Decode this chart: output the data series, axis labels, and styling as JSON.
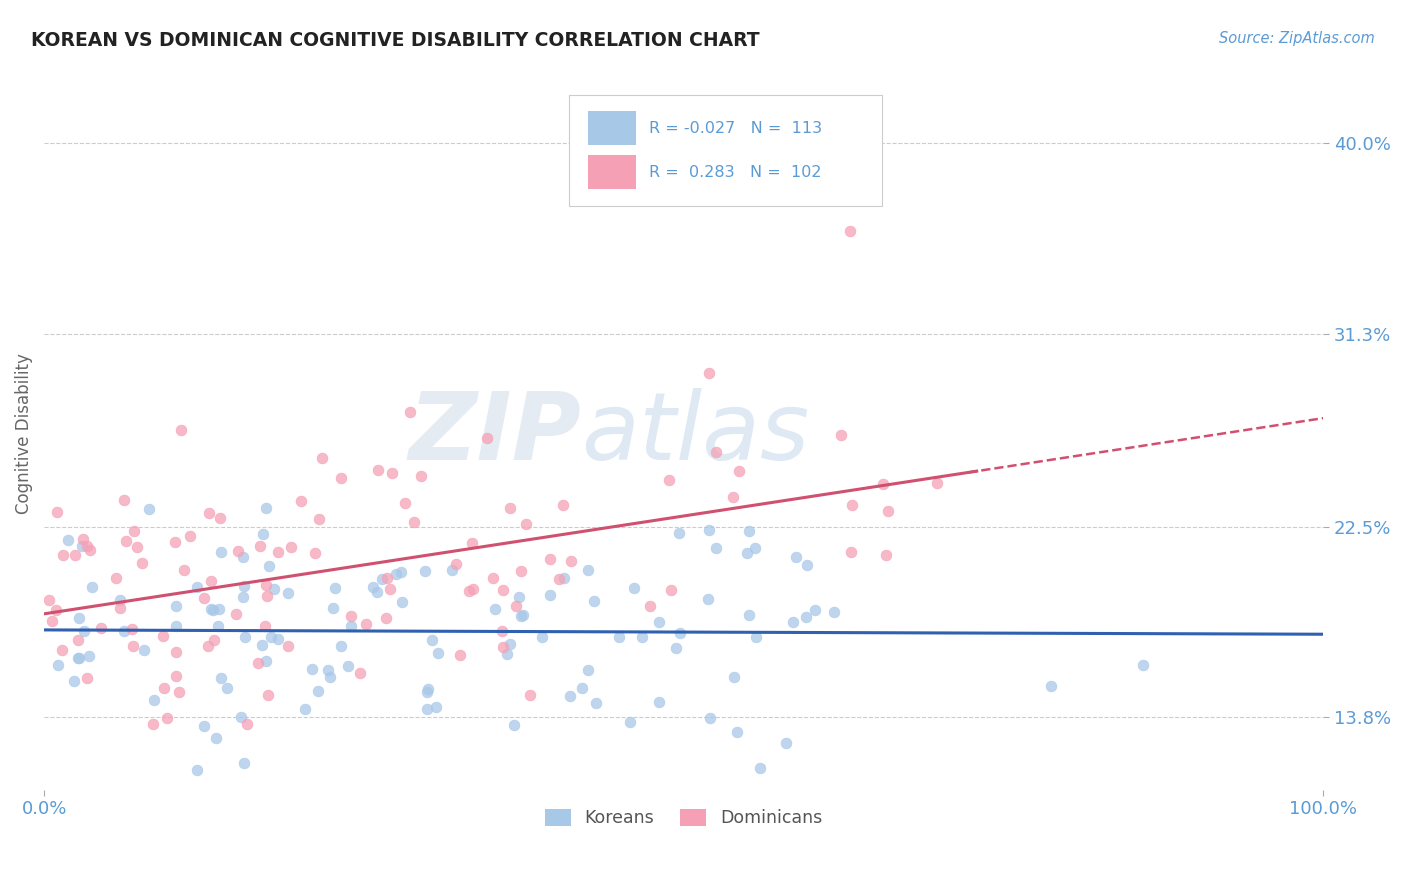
{
  "title": "KOREAN VS DOMINICAN COGNITIVE DISABILITY CORRELATION CHART",
  "source_text": "Source: ZipAtlas.com",
  "ylabel": "Cognitive Disability",
  "y_tick_labels": [
    "13.8%",
    "22.5%",
    "31.3%",
    "40.0%"
  ],
  "y_tick_values": [
    0.138,
    0.225,
    0.313,
    0.4
  ],
  "xlim": [
    0.0,
    1.0
  ],
  "ylim": [
    0.105,
    0.43
  ],
  "korean_R": -0.027,
  "korean_N": 113,
  "dominican_R": 0.283,
  "dominican_N": 102,
  "korean_color": "#a8c8e8",
  "dominican_color": "#f5a0b5",
  "korean_line_color": "#3060b0",
  "dominican_line_color": "#d05070",
  "legend_label_korean": "Koreans",
  "legend_label_dominican": "Dominicans",
  "title_color": "#222222",
  "axis_color": "#5b9bd5",
  "background_color": "#ffffff",
  "grid_color": "#cccccc"
}
